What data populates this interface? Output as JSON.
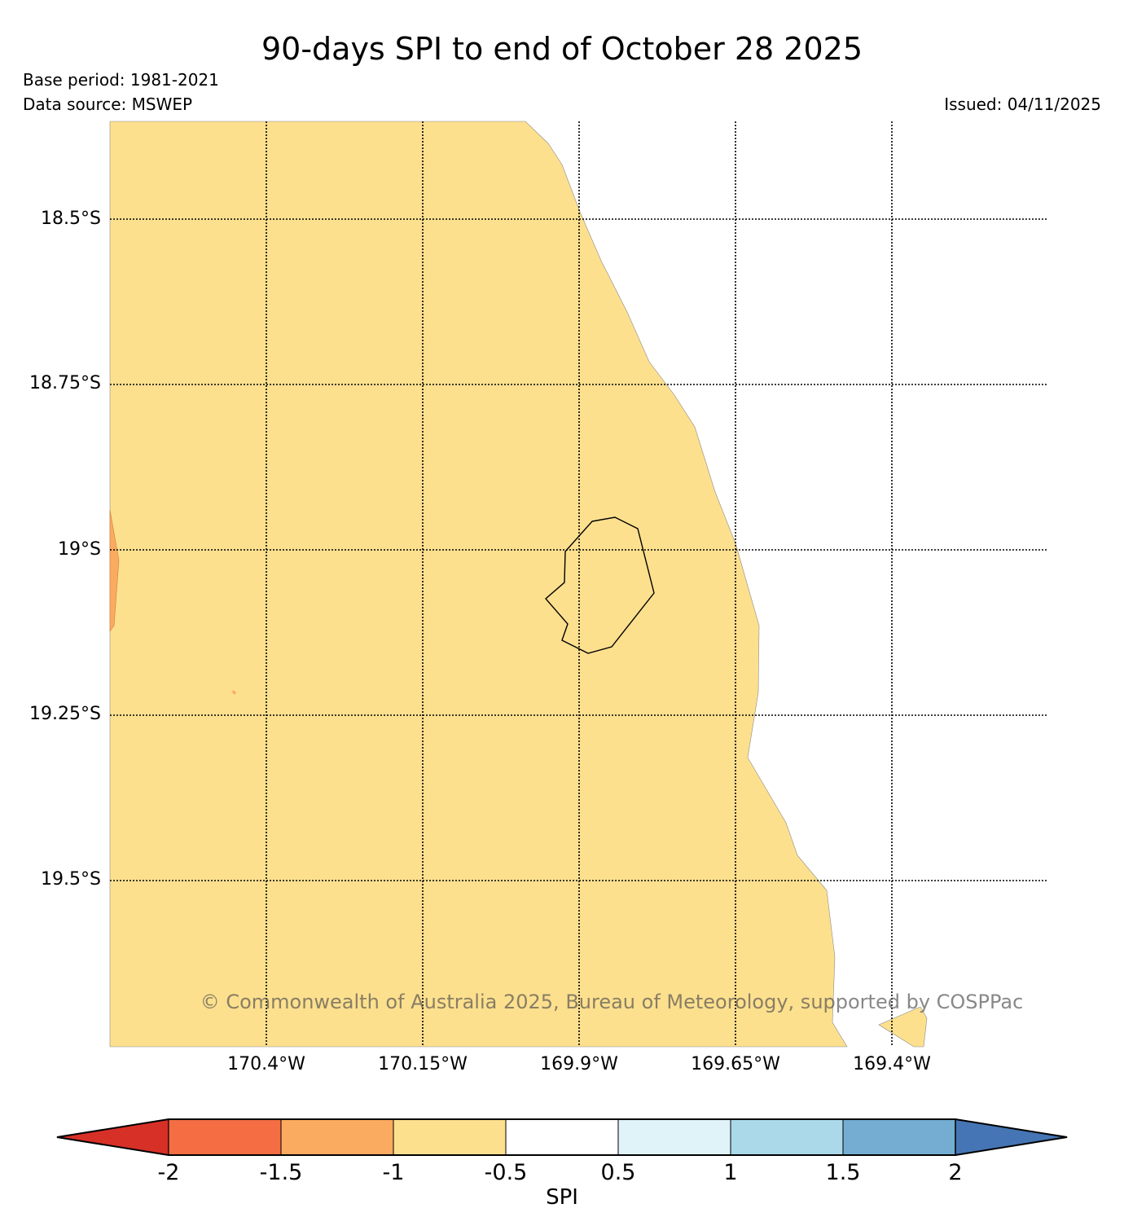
{
  "header": {
    "title": "90-days SPI to end of October 28 2025",
    "base_period": "Base period: 1981-2021",
    "data_source": "Data source: MSWEP",
    "issued": "Issued: 04/11/2025"
  },
  "map": {
    "lat_labels": [
      "18.5°S",
      "18.75°S",
      "19°S",
      "19.25°S",
      "19.5°S"
    ],
    "lon_labels": [
      "170.4°W",
      "170.15°W",
      "169.9°W",
      "169.65°W",
      "169.4°W"
    ],
    "fill_color_main": "#fde08e",
    "fill_color_dry": "#fbab5f",
    "watermark": "© Commonwealth of Australia 2025, Bureau of Meteorology, supported by COSPPac"
  },
  "colorbar": {
    "label": "SPI",
    "ticks": [
      "-2",
      "-1.5",
      "-1",
      "-0.5",
      "0.5",
      "1",
      "1.5",
      "2"
    ],
    "colors": [
      "#d73027",
      "#f46d43",
      "#fbab5f",
      "#fde08e",
      "#ffffff",
      "#e0f3f8",
      "#abd9e9",
      "#74add1",
      "#4575b4"
    ]
  }
}
